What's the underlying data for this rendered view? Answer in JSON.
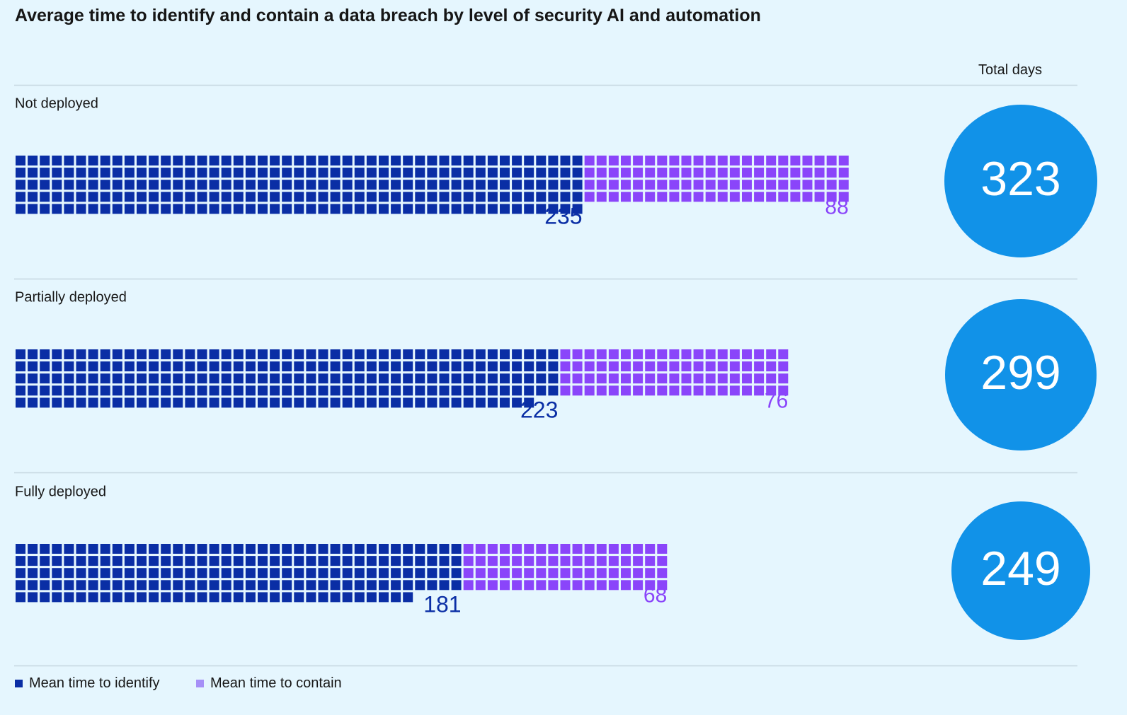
{
  "chart_data": {
    "type": "waffle-bar",
    "title": "Average time to identify and contain a data breach by level of security AI and automation",
    "total_header": "Total days",
    "unit_per_square": 1,
    "colors": {
      "identify": "#0a2ea5",
      "contain": "#8a45fa",
      "total_circle": "#1192e8",
      "total_text": "#ffffff",
      "divider": "#c6d7e0"
    },
    "groups": [
      {
        "label": "Not deployed",
        "identify": 235,
        "contain": 88,
        "identify_label": "235",
        "contain_label": "88",
        "total": 323,
        "total_label": "323"
      },
      {
        "label": "Partially deployed",
        "identify": 223,
        "contain": 76,
        "identify_label": "223",
        "contain_label": "76",
        "total": 299,
        "total_label": "299"
      },
      {
        "label": "Fully deployed",
        "identify": 181,
        "contain": 68,
        "identify_label": "181",
        "contain_label": "68",
        "total": 249,
        "total_label": "249"
      }
    ],
    "legend": [
      {
        "name": "Mean time to identify",
        "color": "#0a2ea5"
      },
      {
        "name": "Mean time to contain",
        "color": "#a690f7"
      }
    ]
  }
}
